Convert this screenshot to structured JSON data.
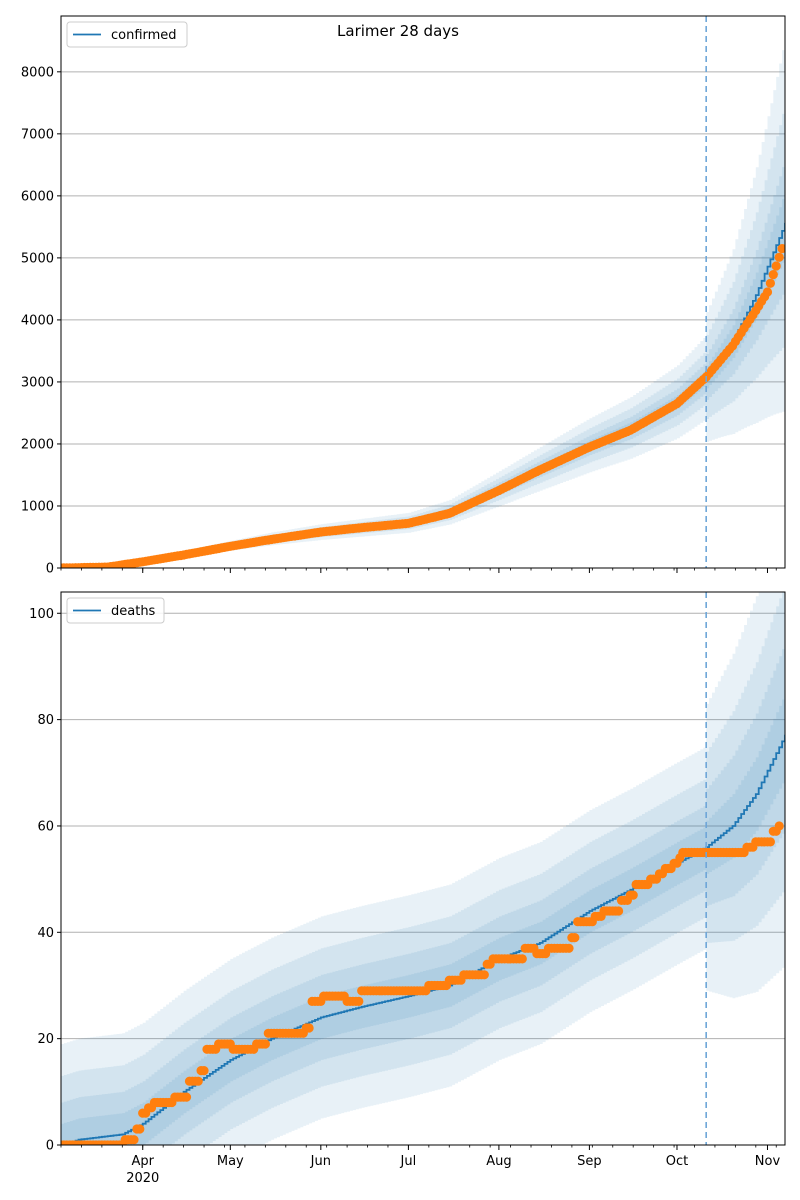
{
  "title": "Larimer 28 days",
  "colors": {
    "model_line": "#1f77b4",
    "observed_points": "#ff7f0e",
    "band": "#1f77b4",
    "grid": "#b0b0b0",
    "vline": "#6ea6d8"
  },
  "x_axis": {
    "start": "2020-03-04",
    "end": "2020-11-07",
    "month_ticks": [
      {
        "date": "2020-04-01",
        "label": "Apr"
      },
      {
        "date": "2020-05-01",
        "label": "May"
      },
      {
        "date": "2020-06-01",
        "label": "Jun"
      },
      {
        "date": "2020-07-01",
        "label": "Jul"
      },
      {
        "date": "2020-08-01",
        "label": "Aug"
      },
      {
        "date": "2020-09-01",
        "label": "Sep"
      },
      {
        "date": "2020-10-01",
        "label": "Oct"
      },
      {
        "date": "2020-11-01",
        "label": "Nov"
      }
    ],
    "year_label": "2020",
    "forecast_start": "2020-10-11"
  },
  "chart_data": [
    {
      "type": "line",
      "name": "confirmed",
      "legend": "top-left",
      "grid": "horizontal",
      "ylim": [
        0,
        8900
      ],
      "yticks": [
        0,
        1000,
        2000,
        3000,
        4000,
        5000,
        6000,
        7000,
        8000
      ],
      "model_line": [
        {
          "x": "2020-03-04",
          "y": 0
        },
        {
          "x": "2020-03-20",
          "y": 20
        },
        {
          "x": "2020-04-01",
          "y": 110
        },
        {
          "x": "2020-04-15",
          "y": 230
        },
        {
          "x": "2020-05-01",
          "y": 360
        },
        {
          "x": "2020-05-15",
          "y": 470
        },
        {
          "x": "2020-06-01",
          "y": 580
        },
        {
          "x": "2020-06-15",
          "y": 650
        },
        {
          "x": "2020-07-01",
          "y": 730
        },
        {
          "x": "2020-07-15",
          "y": 900
        },
        {
          "x": "2020-08-01",
          "y": 1280
        },
        {
          "x": "2020-08-15",
          "y": 1600
        },
        {
          "x": "2020-09-01",
          "y": 1980
        },
        {
          "x": "2020-09-15",
          "y": 2260
        },
        {
          "x": "2020-10-01",
          "y": 2680
        },
        {
          "x": "2020-10-11",
          "y": 3080
        },
        {
          "x": "2020-10-20",
          "y": 3650
        },
        {
          "x": "2020-10-28",
          "y": 4400
        },
        {
          "x": "2020-11-07",
          "y": 5550
        }
      ],
      "observed": [
        {
          "x": "2020-03-04",
          "y": 0
        },
        {
          "x": "2020-03-20",
          "y": 15
        },
        {
          "x": "2020-04-01",
          "y": 100
        },
        {
          "x": "2020-04-15",
          "y": 210
        },
        {
          "x": "2020-05-01",
          "y": 350
        },
        {
          "x": "2020-05-15",
          "y": 460
        },
        {
          "x": "2020-06-01",
          "y": 580
        },
        {
          "x": "2020-06-15",
          "y": 650
        },
        {
          "x": "2020-07-01",
          "y": 720
        },
        {
          "x": "2020-07-15",
          "y": 880
        },
        {
          "x": "2020-08-01",
          "y": 1250
        },
        {
          "x": "2020-08-15",
          "y": 1580
        },
        {
          "x": "2020-09-01",
          "y": 1950
        },
        {
          "x": "2020-09-15",
          "y": 2220
        },
        {
          "x": "2020-10-01",
          "y": 2650
        },
        {
          "x": "2020-10-11",
          "y": 3080
        },
        {
          "x": "2020-10-20",
          "y": 3580
        },
        {
          "x": "2020-10-28",
          "y": 4150
        },
        {
          "x": "2020-11-01",
          "y": 4450
        },
        {
          "x": "2020-11-06",
          "y": 5150
        }
      ],
      "band_widths": [
        0.04,
        0.08,
        0.14,
        0.22
      ],
      "forecast_band_widths": [
        0.06,
        0.12,
        0.22,
        0.34
      ]
    },
    {
      "type": "line",
      "name": "deaths",
      "legend": "top-left",
      "grid": "horizontal",
      "ylim": [
        0,
        104
      ],
      "yticks": [
        0,
        20,
        40,
        60,
        80,
        100
      ],
      "model_line": [
        {
          "x": "2020-03-04",
          "y": 0
        },
        {
          "x": "2020-03-10",
          "y": 1
        },
        {
          "x": "2020-03-25",
          "y": 2
        },
        {
          "x": "2020-04-01",
          "y": 4
        },
        {
          "x": "2020-04-15",
          "y": 10
        },
        {
          "x": "2020-05-01",
          "y": 16
        },
        {
          "x": "2020-05-15",
          "y": 20
        },
        {
          "x": "2020-06-01",
          "y": 24
        },
        {
          "x": "2020-06-15",
          "y": 26
        },
        {
          "x": "2020-07-01",
          "y": 28
        },
        {
          "x": "2020-07-15",
          "y": 30
        },
        {
          "x": "2020-08-01",
          "y": 35
        },
        {
          "x": "2020-08-15",
          "y": 38
        },
        {
          "x": "2020-09-01",
          "y": 44
        },
        {
          "x": "2020-09-15",
          "y": 48
        },
        {
          "x": "2020-10-01",
          "y": 53
        },
        {
          "x": "2020-10-11",
          "y": 56
        },
        {
          "x": "2020-10-20",
          "y": 60
        },
        {
          "x": "2020-10-28",
          "y": 66
        },
        {
          "x": "2020-11-07",
          "y": 77
        }
      ],
      "observed": [
        {
          "x": "2020-03-04",
          "y": 0
        },
        {
          "x": "2020-03-26",
          "y": 1
        },
        {
          "x": "2020-03-30",
          "y": 3
        },
        {
          "x": "2020-04-01",
          "y": 6
        },
        {
          "x": "2020-04-03",
          "y": 7
        },
        {
          "x": "2020-04-05",
          "y": 8
        },
        {
          "x": "2020-04-12",
          "y": 9
        },
        {
          "x": "2020-04-17",
          "y": 12
        },
        {
          "x": "2020-04-21",
          "y": 14
        },
        {
          "x": "2020-04-23",
          "y": 18
        },
        {
          "x": "2020-04-27",
          "y": 19
        },
        {
          "x": "2020-05-02",
          "y": 18
        },
        {
          "x": "2020-05-10",
          "y": 19
        },
        {
          "x": "2020-05-14",
          "y": 21
        },
        {
          "x": "2020-05-27",
          "y": 22
        },
        {
          "x": "2020-05-29",
          "y": 27
        },
        {
          "x": "2020-06-02",
          "y": 28
        },
        {
          "x": "2020-06-10",
          "y": 27
        },
        {
          "x": "2020-06-15",
          "y": 29
        },
        {
          "x": "2020-07-08",
          "y": 30
        },
        {
          "x": "2020-07-15",
          "y": 31
        },
        {
          "x": "2020-07-20",
          "y": 32
        },
        {
          "x": "2020-07-28",
          "y": 34
        },
        {
          "x": "2020-07-30",
          "y": 35
        },
        {
          "x": "2020-08-10",
          "y": 37
        },
        {
          "x": "2020-08-14",
          "y": 36
        },
        {
          "x": "2020-08-18",
          "y": 37
        },
        {
          "x": "2020-08-26",
          "y": 39
        },
        {
          "x": "2020-08-28",
          "y": 42
        },
        {
          "x": "2020-09-03",
          "y": 43
        },
        {
          "x": "2020-09-06",
          "y": 44
        },
        {
          "x": "2020-09-12",
          "y": 46
        },
        {
          "x": "2020-09-15",
          "y": 47
        },
        {
          "x": "2020-09-17",
          "y": 49
        },
        {
          "x": "2020-09-22",
          "y": 50
        },
        {
          "x": "2020-09-25",
          "y": 51
        },
        {
          "x": "2020-09-27",
          "y": 52
        },
        {
          "x": "2020-09-30",
          "y": 53
        },
        {
          "x": "2020-10-02",
          "y": 54
        },
        {
          "x": "2020-10-03",
          "y": 55
        },
        {
          "x": "2020-10-25",
          "y": 56
        },
        {
          "x": "2020-10-28",
          "y": 57
        },
        {
          "x": "2020-11-03",
          "y": 59
        },
        {
          "x": "2020-11-05",
          "y": 60
        }
      ],
      "band_widths": [
        4,
        8,
        13,
        19
      ],
      "forecast_band_widths": [
        5,
        11,
        18,
        27
      ]
    }
  ]
}
